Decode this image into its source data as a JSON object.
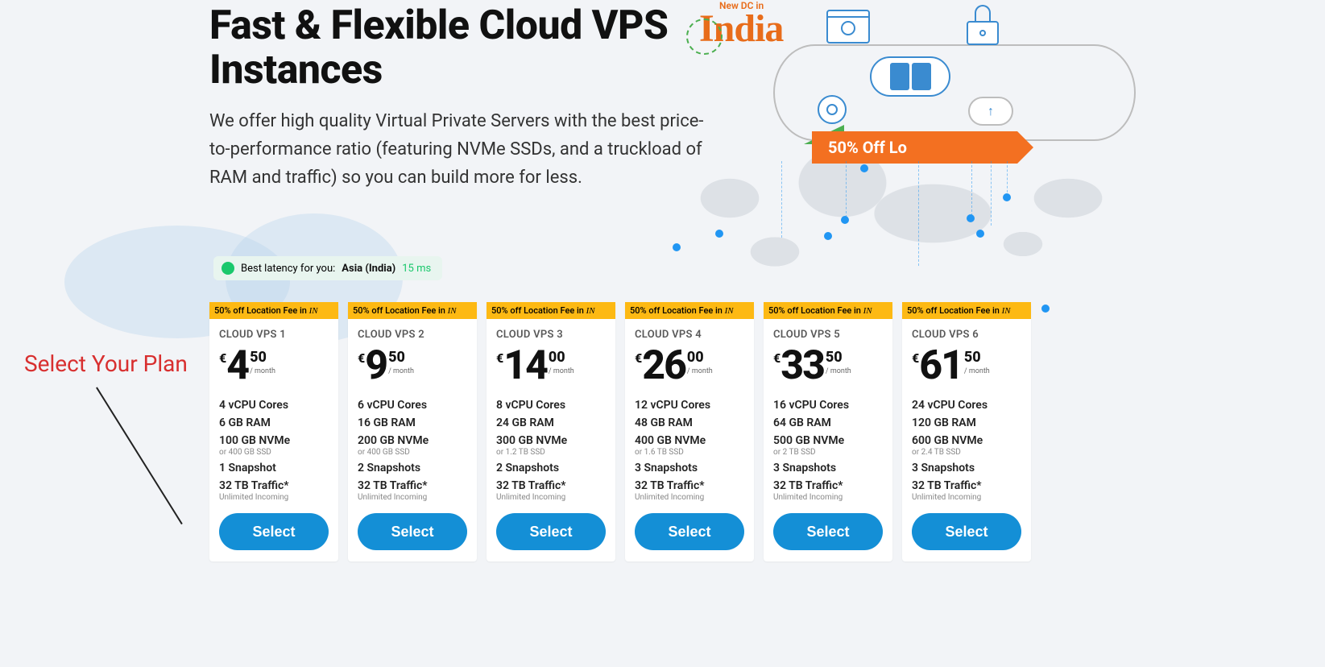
{
  "hero": {
    "title": "Fast & Flexible Cloud VPS Instances",
    "subtitle": "We offer high quality Virtual Private Servers with the best price-to-performance ratio (featuring NVMe SSDs, and a truckload of RAM and traffic) so you can build more for less."
  },
  "illustration": {
    "new_dc": "New DC in",
    "country": "India",
    "banner": "50% Off Lo"
  },
  "latency": {
    "label": "Best latency for you:",
    "region": "Asia (India)",
    "ms": "15 ms"
  },
  "annotation": {
    "text": "Select Your Plan"
  },
  "promo": {
    "text": "50% off Location Fee in ",
    "suffix": "IN"
  },
  "per_month": "/ month",
  "select_label": "Select",
  "plans": [
    {
      "name": "CLOUD VPS 1",
      "cur": "€",
      "int": "4",
      "frac": "50",
      "cpu": "4 vCPU Cores",
      "ram": "6 GB RAM",
      "storage": "100 GB NVMe",
      "storage_alt": "or 400 GB SSD",
      "snapshot": "1 Snapshot",
      "traffic": "32 TB Traffic*",
      "traffic_sub": "Unlimited Incoming"
    },
    {
      "name": "CLOUD VPS 2",
      "cur": "€",
      "int": "9",
      "frac": "50",
      "cpu": "6 vCPU Cores",
      "ram": "16 GB RAM",
      "storage": "200 GB NVMe",
      "storage_alt": "or 400 GB SSD",
      "snapshot": "2 Snapshots",
      "traffic": "32 TB Traffic*",
      "traffic_sub": "Unlimited Incoming"
    },
    {
      "name": "CLOUD VPS 3",
      "cur": "€",
      "int": "14",
      "frac": "00",
      "cpu": "8 vCPU Cores",
      "ram": "24 GB RAM",
      "storage": "300 GB NVMe",
      "storage_alt": "or 1.2 TB SSD",
      "snapshot": "2 Snapshots",
      "traffic": "32 TB Traffic*",
      "traffic_sub": "Unlimited Incoming"
    },
    {
      "name": "CLOUD VPS 4",
      "cur": "€",
      "int": "26",
      "frac": "00",
      "cpu": "12 vCPU Cores",
      "ram": "48 GB RAM",
      "storage": "400 GB NVMe",
      "storage_alt": "or 1.6 TB SSD",
      "snapshot": "3 Snapshots",
      "traffic": "32 TB Traffic*",
      "traffic_sub": "Unlimited Incoming"
    },
    {
      "name": "CLOUD VPS 5",
      "cur": "€",
      "int": "33",
      "frac": "50",
      "cpu": "16 vCPU Cores",
      "ram": "64 GB RAM",
      "storage": "500 GB NVMe",
      "storage_alt": "or 2 TB SSD",
      "snapshot": "3 Snapshots",
      "traffic": "32 TB Traffic*",
      "traffic_sub": "Unlimited Incoming"
    },
    {
      "name": "CLOUD VPS 6",
      "cur": "€",
      "int": "61",
      "frac": "50",
      "cpu": "24 vCPU Cores",
      "ram": "120 GB RAM",
      "storage": "600 GB NVMe",
      "storage_alt": "or 2.4 TB SSD",
      "snapshot": "3 Snapshots",
      "traffic": "32 TB Traffic*",
      "traffic_sub": "Unlimited Incoming"
    }
  ],
  "colors": {
    "accent": "#148fd6",
    "promo_bg": "#fdb913",
    "latency_green": "#1ac86c",
    "annotation_red": "#d82f2f",
    "india_orange": "#e86c1a",
    "banner_orange": "#f37021"
  }
}
